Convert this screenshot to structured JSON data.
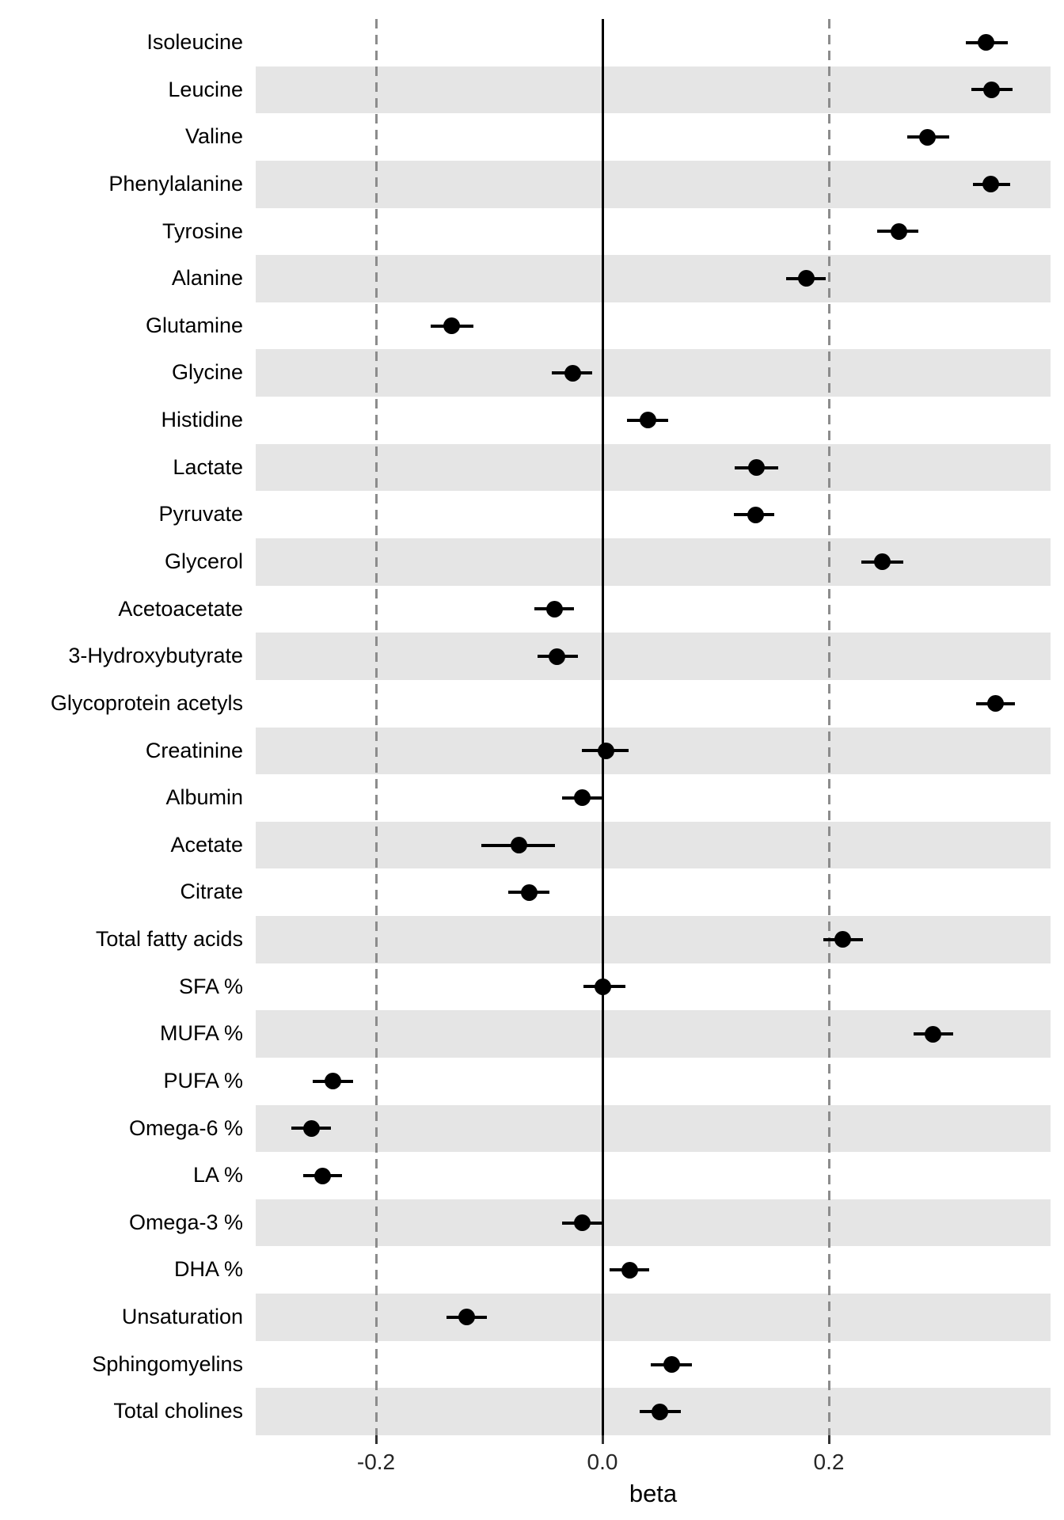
{
  "figure": {
    "background": "#ffffff"
  },
  "chart_data": {
    "type": "scatter",
    "variant": "horizontal-forest-dot-whisker",
    "title": "",
    "xlabel": "beta",
    "ylabel": "",
    "legend": "none",
    "grid": "none",
    "categories": [
      "Isoleucine",
      "Leucine",
      "Valine",
      "Phenylalanine",
      "Tyrosine",
      "Alanine",
      "Glutamine",
      "Glycine",
      "Histidine",
      "Lactate",
      "Pyruvate",
      "Glycerol",
      "Acetoacetate",
      "3-Hydroxybutyrate",
      "Glycoprotein acetyls",
      "Creatinine",
      "Albumin",
      "Acetate",
      "Citrate",
      "Total fatty acids",
      "SFA %",
      "MUFA %",
      "PUFA %",
      "Omega-6 %",
      "LA %",
      "Omega-3 %",
      "DHA %",
      "Unsaturation",
      "Sphingomyelins",
      "Total cholines"
    ],
    "series": [
      {
        "name": "beta",
        "values": [
          0.339,
          0.344,
          0.287,
          0.343,
          0.262,
          0.18,
          -0.133,
          -0.026,
          0.04,
          0.136,
          0.135,
          0.247,
          -0.042,
          -0.04,
          0.347,
          0.003,
          -0.018,
          -0.074,
          -0.065,
          0.212,
          0.0,
          0.292,
          -0.238,
          -0.257,
          -0.247,
          -0.018,
          0.024,
          -0.12,
          0.061,
          0.051
        ]
      },
      {
        "name": "ci_lower",
        "values": [
          0.321,
          0.326,
          0.269,
          0.327,
          0.243,
          0.162,
          -0.152,
          -0.045,
          0.022,
          0.117,
          0.116,
          0.229,
          -0.06,
          -0.057,
          0.33,
          -0.018,
          -0.036,
          -0.107,
          -0.083,
          0.195,
          -0.017,
          0.275,
          -0.256,
          -0.275,
          -0.264,
          -0.036,
          0.006,
          -0.138,
          0.043,
          0.033
        ]
      },
      {
        "name": "ci_upper",
        "values": [
          0.358,
          0.362,
          0.306,
          0.36,
          0.279,
          0.197,
          -0.114,
          -0.009,
          0.058,
          0.155,
          0.152,
          0.266,
          -0.025,
          -0.022,
          0.364,
          0.023,
          0.0,
          -0.042,
          -0.047,
          0.23,
          0.02,
          0.31,
          -0.22,
          -0.24,
          -0.23,
          -0.001,
          0.041,
          -0.102,
          0.079,
          0.069
        ]
      }
    ],
    "xticks": {
      "values": [
        -0.2,
        0.0,
        0.2
      ],
      "labels": [
        "-0.2",
        "0.0",
        "0.2"
      ]
    },
    "xlim": [
      -0.3063,
      0.3958
    ],
    "reference_lines": {
      "solid_at": 0.0,
      "dashed_at": [
        -0.2,
        0.2
      ]
    },
    "row_banding": {
      "odd_rows": "#ffffff",
      "even_rows": "#e5e5e5"
    },
    "colors": {
      "point": "#000000",
      "whisker": "#000000",
      "zero_line": "#000000",
      "dashed_line": "#8c8c8c",
      "tick_mark": "#333333",
      "tick_text": "#262626",
      "label_text": "#000000"
    }
  }
}
